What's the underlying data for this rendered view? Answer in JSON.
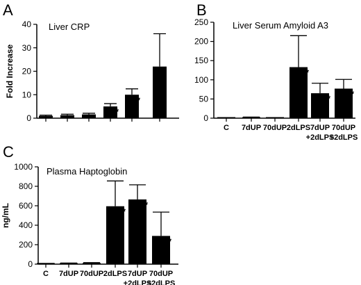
{
  "chart_data": [
    {
      "panel": "A",
      "type": "bar",
      "title": "Liver CRP",
      "ylabel": "Fold Increase",
      "xlabel": "",
      "ylim": [
        0,
        40
      ],
      "yticks": [
        0,
        10,
        20,
        30,
        40
      ],
      "categories": [
        "",
        "",
        "",
        "",
        "",
        ""
      ],
      "values": [
        1.0,
        1.3,
        1.6,
        5.0,
        10.0,
        22.0
      ],
      "errors": [
        0.3,
        0.4,
        0.5,
        1.2,
        2.5,
        14.0
      ],
      "significant": [
        false,
        false,
        false,
        true,
        true,
        false
      ]
    },
    {
      "panel": "B",
      "type": "bar",
      "title": "Liver Serum Amyloid A3",
      "ylabel": "",
      "xlabel": "",
      "ylim": [
        0,
        250
      ],
      "yticks": [
        0,
        50,
        100,
        150,
        200,
        250
      ],
      "categories": [
        "C",
        "7dUP",
        "70dUP",
        "2dLPS",
        "7dUP\n+2dLPS",
        "70dUP\n+2dLPS"
      ],
      "values": [
        0.5,
        1.5,
        0.5,
        133,
        65,
        77
      ],
      "errors": [
        0.3,
        1.5,
        0.3,
        82,
        26,
        24
      ],
      "significant": [
        false,
        false,
        false,
        true,
        true,
        true
      ]
    },
    {
      "panel": "C",
      "type": "bar",
      "title": "Plasma Haptoglobin",
      "ylabel": "ng/mL",
      "xlabel": "",
      "ylim": [
        0,
        1000
      ],
      "yticks": [
        0,
        200,
        400,
        600,
        800,
        1000
      ],
      "categories": [
        "C",
        "7dUP",
        "70dUP",
        "2dLPS",
        "7dUP\n+2dLPS",
        "70dUP\n+2dLPS"
      ],
      "values": [
        5,
        8,
        12,
        595,
        665,
        290
      ],
      "errors": [
        3,
        3,
        4,
        260,
        150,
        245
      ],
      "significant": [
        false,
        false,
        false,
        true,
        true,
        true
      ]
    }
  ],
  "significance_marker": "*"
}
